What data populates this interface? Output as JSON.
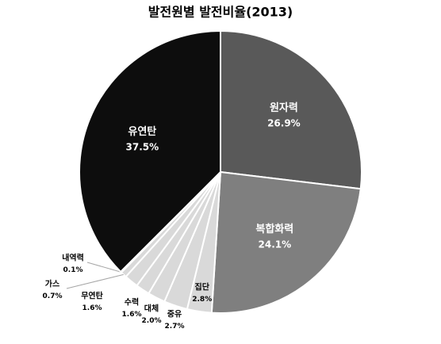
{
  "chart_data": {
    "type": "pie",
    "title": "발전원별 발전비율(2013)",
    "categories": [
      "원자력",
      "복합화력",
      "집단",
      "중유",
      "대체",
      "수력",
      "무연탄",
      "가스",
      "내역력",
      "유연탄"
    ],
    "values": [
      26.9,
      24.1,
      2.8,
      2.7,
      2.0,
      1.6,
      1.6,
      0.7,
      0.1,
      37.5
    ],
    "value_labels": [
      "26.9%",
      "24.1%",
      "2.8%",
      "2.7%",
      "2.0%",
      "1.6%",
      "1.6%",
      "0.7%",
      "0.1%",
      "37.5%"
    ],
    "colors": [
      "#595959",
      "#7f7f7f",
      "#d9d9d9",
      "#d9d9d9",
      "#d9d9d9",
      "#d9d9d9",
      "#d9d9d9",
      "#d9d9d9",
      "#d9d9d9",
      "#0d0d0d"
    ]
  }
}
